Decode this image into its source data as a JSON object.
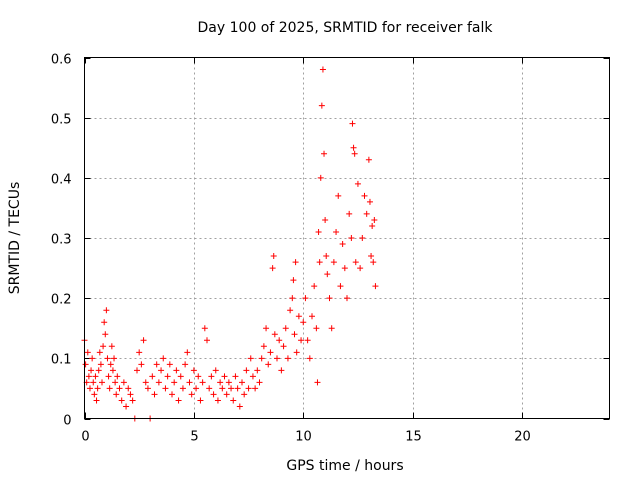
{
  "chart_data": {
    "type": "scatter",
    "title": "Day 100 of 2025, SRMTID for receiver falk",
    "xlabel": "GPS time / hours",
    "ylabel": "SRMTID / TECUs",
    "xlim": [
      0,
      24
    ],
    "ylim": [
      0,
      0.6
    ],
    "xticks": [
      "0",
      "5",
      "10",
      "15",
      "20"
    ],
    "yticks": [
      "0",
      "0.1",
      "0.2",
      "0.3",
      "0.4",
      "0.5",
      "0.6"
    ],
    "grid": true,
    "marker": "+",
    "color": "#ff0000",
    "series": [
      {
        "name": "SRMTID",
        "points": [
          [
            0.0,
            0.13
          ],
          [
            0.05,
            0.09
          ],
          [
            0.1,
            0.06
          ],
          [
            0.15,
            0.11
          ],
          [
            0.2,
            0.07
          ],
          [
            0.25,
            0.05
          ],
          [
            0.3,
            0.08
          ],
          [
            0.35,
            0.1
          ],
          [
            0.4,
            0.06
          ],
          [
            0.45,
            0.04
          ],
          [
            0.5,
            0.07
          ],
          [
            0.55,
            0.03
          ],
          [
            0.6,
            0.05
          ],
          [
            0.65,
            0.08
          ],
          [
            0.7,
            0.11
          ],
          [
            0.75,
            0.09
          ],
          [
            0.8,
            0.06
          ],
          [
            0.85,
            0.12
          ],
          [
            0.9,
            0.16
          ],
          [
            0.95,
            0.14
          ],
          [
            1.0,
            0.18
          ],
          [
            1.05,
            0.1
          ],
          [
            1.1,
            0.07
          ],
          [
            1.15,
            0.05
          ],
          [
            1.2,
            0.09
          ],
          [
            1.25,
            0.12
          ],
          [
            1.3,
            0.08
          ],
          [
            1.35,
            0.1
          ],
          [
            1.4,
            0.06
          ],
          [
            1.45,
            0.04
          ],
          [
            1.5,
            0.07
          ],
          [
            1.6,
            0.05
          ],
          [
            1.7,
            0.03
          ],
          [
            1.8,
            0.06
          ],
          [
            1.9,
            0.02
          ],
          [
            2.0,
            0.05
          ],
          [
            2.1,
            0.04
          ],
          [
            2.2,
            0.03
          ],
          [
            2.3,
            0.0
          ],
          [
            2.4,
            0.08
          ],
          [
            2.5,
            0.11
          ],
          [
            2.6,
            0.09
          ],
          [
            2.7,
            0.13
          ],
          [
            2.8,
            0.06
          ],
          [
            2.9,
            0.05
          ],
          [
            3.0,
            0.0
          ],
          [
            3.1,
            0.07
          ],
          [
            3.2,
            0.04
          ],
          [
            3.3,
            0.09
          ],
          [
            3.4,
            0.06
          ],
          [
            3.5,
            0.08
          ],
          [
            3.6,
            0.1
          ],
          [
            3.7,
            0.05
          ],
          [
            3.8,
            0.07
          ],
          [
            3.9,
            0.09
          ],
          [
            4.0,
            0.04
          ],
          [
            4.1,
            0.06
          ],
          [
            4.2,
            0.08
          ],
          [
            4.3,
            0.03
          ],
          [
            4.4,
            0.07
          ],
          [
            4.5,
            0.05
          ],
          [
            4.6,
            0.09
          ],
          [
            4.7,
            0.11
          ],
          [
            4.8,
            0.06
          ],
          [
            4.9,
            0.04
          ],
          [
            5.0,
            0.08
          ],
          [
            5.1,
            0.05
          ],
          [
            5.2,
            0.07
          ],
          [
            5.3,
            0.03
          ],
          [
            5.4,
            0.06
          ],
          [
            5.5,
            0.15
          ],
          [
            5.6,
            0.13
          ],
          [
            5.7,
            0.05
          ],
          [
            5.8,
            0.07
          ],
          [
            5.9,
            0.04
          ],
          [
            6.0,
            0.08
          ],
          [
            6.1,
            0.03
          ],
          [
            6.2,
            0.06
          ],
          [
            6.3,
            0.05
          ],
          [
            6.4,
            0.07
          ],
          [
            6.5,
            0.04
          ],
          [
            6.6,
            0.06
          ],
          [
            6.7,
            0.05
          ],
          [
            6.8,
            0.03
          ],
          [
            6.9,
            0.07
          ],
          [
            7.0,
            0.05
          ],
          [
            7.1,
            0.02
          ],
          [
            7.2,
            0.06
          ],
          [
            7.3,
            0.04
          ],
          [
            7.4,
            0.08
          ],
          [
            7.5,
            0.05
          ],
          [
            7.6,
            0.1
          ],
          [
            7.7,
            0.07
          ],
          [
            7.8,
            0.05
          ],
          [
            7.9,
            0.08
          ],
          [
            8.0,
            0.06
          ],
          [
            8.1,
            0.1
          ],
          [
            8.2,
            0.12
          ],
          [
            8.3,
            0.15
          ],
          [
            8.4,
            0.09
          ],
          [
            8.5,
            0.11
          ],
          [
            8.6,
            0.25
          ],
          [
            8.65,
            0.27
          ],
          [
            8.7,
            0.14
          ],
          [
            8.8,
            0.1
          ],
          [
            8.9,
            0.13
          ],
          [
            9.0,
            0.08
          ],
          [
            9.1,
            0.12
          ],
          [
            9.2,
            0.15
          ],
          [
            9.3,
            0.1
          ],
          [
            9.4,
            0.18
          ],
          [
            9.5,
            0.2
          ],
          [
            9.55,
            0.23
          ],
          [
            9.6,
            0.14
          ],
          [
            9.65,
            0.26
          ],
          [
            9.7,
            0.11
          ],
          [
            9.8,
            0.17
          ],
          [
            9.9,
            0.13
          ],
          [
            10.0,
            0.16
          ],
          [
            10.1,
            0.2
          ],
          [
            10.2,
            0.13
          ],
          [
            10.3,
            0.1
          ],
          [
            10.4,
            0.17
          ],
          [
            10.5,
            0.22
          ],
          [
            10.6,
            0.15
          ],
          [
            10.65,
            0.06
          ],
          [
            10.7,
            0.31
          ],
          [
            10.75,
            0.26
          ],
          [
            10.8,
            0.4
          ],
          [
            10.85,
            0.52
          ],
          [
            10.9,
            0.58
          ],
          [
            10.95,
            0.44
          ],
          [
            11.0,
            0.33
          ],
          [
            11.05,
            0.27
          ],
          [
            11.1,
            0.24
          ],
          [
            11.2,
            0.2
          ],
          [
            11.3,
            0.15
          ],
          [
            11.4,
            0.26
          ],
          [
            11.5,
            0.31
          ],
          [
            11.6,
            0.37
          ],
          [
            11.7,
            0.22
          ],
          [
            11.8,
            0.29
          ],
          [
            11.9,
            0.25
          ],
          [
            12.0,
            0.2
          ],
          [
            12.1,
            0.34
          ],
          [
            12.2,
            0.3
          ],
          [
            12.25,
            0.49
          ],
          [
            12.3,
            0.45
          ],
          [
            12.35,
            0.44
          ],
          [
            12.4,
            0.26
          ],
          [
            12.5,
            0.39
          ],
          [
            12.6,
            0.25
          ],
          [
            12.7,
            0.3
          ],
          [
            12.8,
            0.37
          ],
          [
            12.9,
            0.34
          ],
          [
            13.0,
            0.43
          ],
          [
            13.05,
            0.36
          ],
          [
            13.1,
            0.27
          ],
          [
            13.15,
            0.32
          ],
          [
            13.2,
            0.26
          ],
          [
            13.25,
            0.33
          ],
          [
            13.3,
            0.22
          ]
        ]
      }
    ]
  }
}
